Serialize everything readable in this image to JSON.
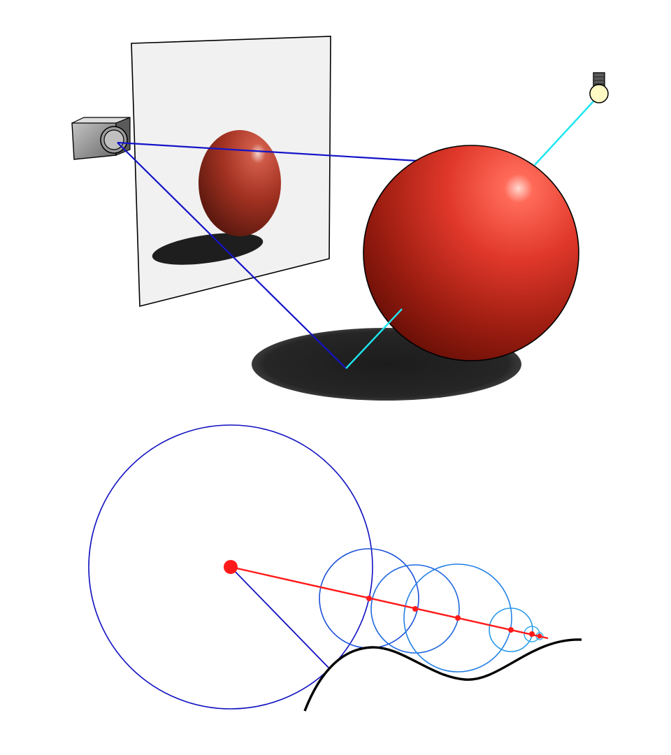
{
  "figure": {
    "colors": {
      "background": "#ffffff",
      "sphere_highlight": "#ff7a6a",
      "sphere_mid": "#e23a2c",
      "sphere_dark": "#6e1108",
      "shadow": "#1a1a1a",
      "screen_fill": "#f1f1f1",
      "camera_ray": "#1414c8",
      "light_ray": "#1ee6f0",
      "march_ray": "#ff1a1a",
      "distance_circle_dark": "#1010c0",
      "distance_circle_light": "#2a9ae8",
      "surface_curve": "#000000",
      "lamp_glass": "#fff9c4",
      "lamp_base": "#555555",
      "camera_body": "#8a8a8a"
    },
    "icons": [
      "camera-icon",
      "light-bulb-icon"
    ],
    "panels": [
      {
        "name": "ray-tracing-scene"
      },
      {
        "name": "sphere-tracing-diagram",
        "march_steps": 6
      }
    ]
  }
}
